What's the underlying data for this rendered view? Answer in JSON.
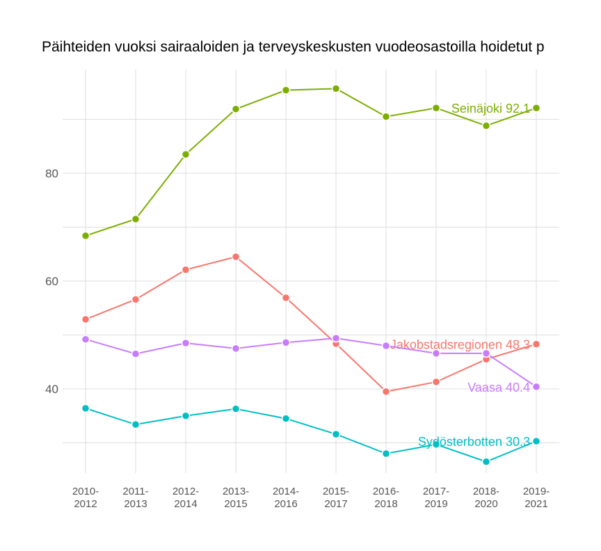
{
  "chart_data": {
    "type": "line",
    "title": "Päihteiden vuoksi sairaaloiden ja terveyskeskusten vuodeosastoilla hoidetut p",
    "xlabel": "",
    "ylabel": "",
    "categories": [
      "2010-2012",
      "2011-2013",
      "2012-2014",
      "2013-2015",
      "2014-2016",
      "2015-2017",
      "2016-2018",
      "2017-2019",
      "2018-2020",
      "2019-2021"
    ],
    "y_ticks": [
      40,
      60,
      80
    ],
    "ylim": [
      24,
      102
    ],
    "grid": true,
    "legend": "none (direct labels at line ends)",
    "series": [
      {
        "name": "Seinäjoki",
        "end_label": "Seinäjoki 92.1",
        "color": "#7CAE00",
        "values": [
          68.4,
          71.5,
          83.5,
          91.9,
          95.4,
          95.7,
          90.5,
          92.1,
          88.8,
          92.1
        ]
      },
      {
        "name": "Jakobstadsregionen",
        "end_label": "Jakobstadsregionen 48.3",
        "color": "#F8766D",
        "values": [
          52.9,
          56.6,
          62.1,
          64.5,
          56.9,
          48.4,
          39.5,
          41.3,
          45.5,
          48.3
        ]
      },
      {
        "name": "Vaasa",
        "end_label": "Vaasa 40.4",
        "color": "#C77CFF",
        "values": [
          49.2,
          46.5,
          48.5,
          47.5,
          48.6,
          49.4,
          48.0,
          46.6,
          46.6,
          40.4
        ]
      },
      {
        "name": "Sydösterbotten",
        "end_label": "Sydösterbotten 30.3",
        "color": "#00BFC4",
        "values": [
          36.4,
          33.4,
          35.0,
          36.3,
          34.5,
          31.6,
          28.0,
          29.7,
          26.5,
          30.3
        ]
      }
    ]
  }
}
